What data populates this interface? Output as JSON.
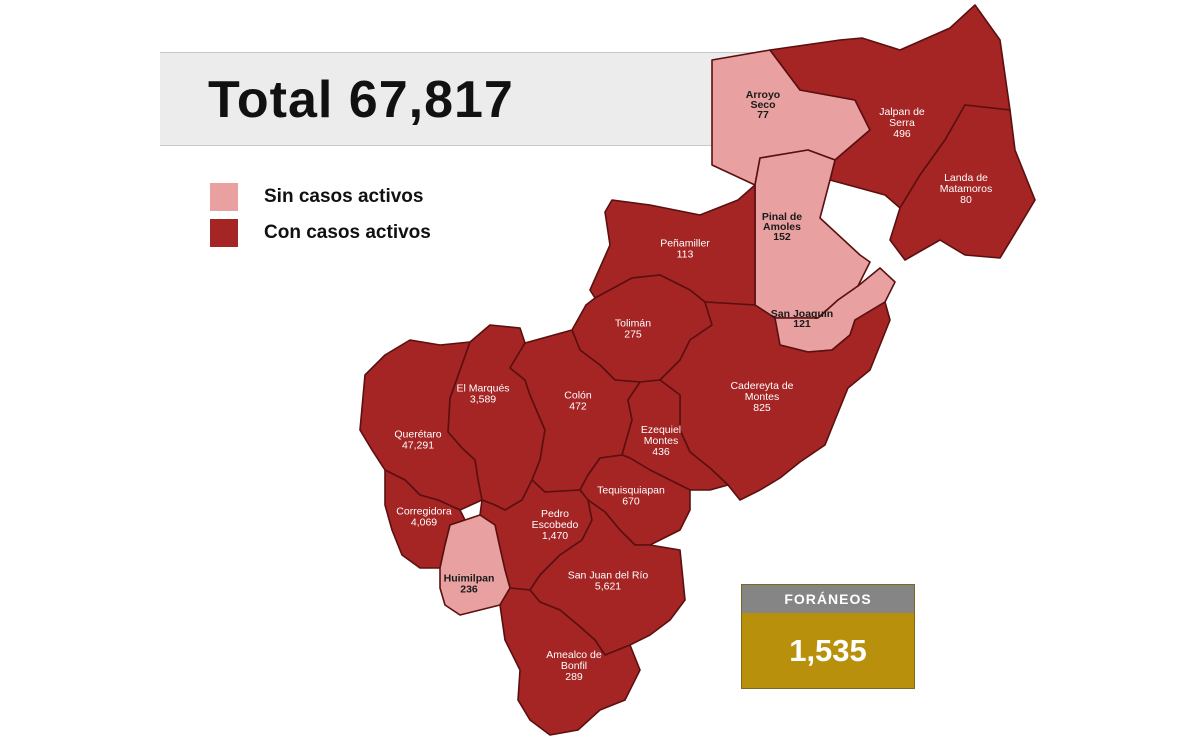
{
  "title": "Total 67,817",
  "legend": [
    {
      "label": "Sin casos activos",
      "color": "#e8a0a0"
    },
    {
      "label": "Con casos activos",
      "color": "#a52424"
    }
  ],
  "colors": {
    "active": "#a52424",
    "inactive": "#e8a0a0",
    "border": "#5a1010",
    "foraneos_header": "#858585",
    "foraneos_value_bg": "#b8900c"
  },
  "municipalities": [
    {
      "name_lines": [
        "Arroyo",
        "Seco"
      ],
      "value": "77",
      "status": "inactive"
    },
    {
      "name_lines": [
        "Jalpan de",
        "Serra"
      ],
      "value": "496",
      "status": "active"
    },
    {
      "name_lines": [
        "Landa de",
        "Matamoros"
      ],
      "value": "80",
      "status": "active"
    },
    {
      "name_lines": [
        "Pinal de",
        "Amoles"
      ],
      "value": "152",
      "status": "inactive"
    },
    {
      "name_lines": [
        "Peñamiller"
      ],
      "value": "113",
      "status": "active"
    },
    {
      "name_lines": [
        "San Joaquín"
      ],
      "value": "121",
      "status": "inactive"
    },
    {
      "name_lines": [
        "Tolimán"
      ],
      "value": "275",
      "status": "active"
    },
    {
      "name_lines": [
        "Cadereyta de",
        "Montes"
      ],
      "value": "825",
      "status": "active"
    },
    {
      "name_lines": [
        "El Marqués"
      ],
      "value": "3,589",
      "status": "active"
    },
    {
      "name_lines": [
        "Colón"
      ],
      "value": "472",
      "status": "active"
    },
    {
      "name_lines": [
        "Querétaro"
      ],
      "value": "47,291",
      "status": "active"
    },
    {
      "name_lines": [
        "Ezequiel",
        "Montes"
      ],
      "value": "436",
      "status": "active"
    },
    {
      "name_lines": [
        "Tequisquiapan"
      ],
      "value": "670",
      "status": "active"
    },
    {
      "name_lines": [
        "Corregidora"
      ],
      "value": "4,069",
      "status": "active"
    },
    {
      "name_lines": [
        "Pedro",
        "Escobedo"
      ],
      "value": "1,470",
      "status": "active"
    },
    {
      "name_lines": [
        "Huimilpan"
      ],
      "value": "236",
      "status": "inactive"
    },
    {
      "name_lines": [
        "San Juan del Río"
      ],
      "value": "5,621",
      "status": "active"
    },
    {
      "name_lines": [
        "Amealco de",
        "Bonfil"
      ],
      "value": "289",
      "status": "active"
    }
  ],
  "foraneos": {
    "label": "FORÁNEOS",
    "value": "1,535"
  }
}
